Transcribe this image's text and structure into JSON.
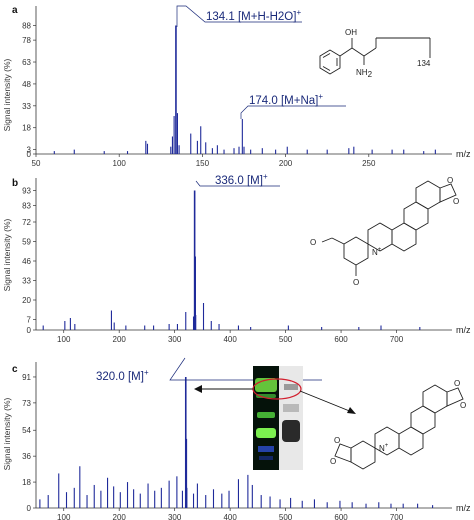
{
  "colors": {
    "spectrum": "#1f2a9a",
    "axis": "#333333",
    "annotation": "#1a2a7a",
    "ellipse": "#d2202f",
    "arrow": "#111111"
  },
  "chart_data": [
    {
      "type": "line",
      "panel": "a",
      "ylabel": "Signal intensity (%)",
      "xlabel": "m/z",
      "xlim": [
        50,
        300
      ],
      "ylim": [
        0,
        100
      ],
      "xticks": [
        "50",
        "100",
        "150",
        "200",
        "250"
      ],
      "yticks": [
        "0",
        "3",
        "18",
        "33",
        "48",
        "63",
        "78",
        "88"
      ],
      "ytick_values": [
        0,
        3,
        18,
        33,
        48,
        63,
        78,
        88
      ],
      "peaks": [
        {
          "x": 61,
          "y": 2
        },
        {
          "x": 73,
          "y": 3
        },
        {
          "x": 91,
          "y": 2
        },
        {
          "x": 105,
          "y": 2
        },
        {
          "x": 116,
          "y": 9
        },
        {
          "x": 117,
          "y": 7
        },
        {
          "x": 131,
          "y": 5
        },
        {
          "x": 132,
          "y": 12
        },
        {
          "x": 133,
          "y": 26
        },
        {
          "x": 134.1,
          "y": 88
        },
        {
          "x": 135,
          "y": 28
        },
        {
          "x": 136,
          "y": 6
        },
        {
          "x": 143,
          "y": 14
        },
        {
          "x": 147,
          "y": 9
        },
        {
          "x": 149,
          "y": 19
        },
        {
          "x": 152,
          "y": 8
        },
        {
          "x": 156,
          "y": 4
        },
        {
          "x": 159,
          "y": 6
        },
        {
          "x": 163,
          "y": 3
        },
        {
          "x": 169,
          "y": 4
        },
        {
          "x": 172,
          "y": 5
        },
        {
          "x": 174.0,
          "y": 24
        },
        {
          "x": 175,
          "y": 5
        },
        {
          "x": 179,
          "y": 3
        },
        {
          "x": 186,
          "y": 4
        },
        {
          "x": 194,
          "y": 3
        },
        {
          "x": 201,
          "y": 5
        },
        {
          "x": 213,
          "y": 3
        },
        {
          "x": 225,
          "y": 3
        },
        {
          "x": 238,
          "y": 4
        },
        {
          "x": 241,
          "y": 5
        },
        {
          "x": 252,
          "y": 3
        },
        {
          "x": 264,
          "y": 3
        },
        {
          "x": 271,
          "y": 3
        },
        {
          "x": 283,
          "y": 2
        },
        {
          "x": 290,
          "y": 3
        }
      ],
      "annotations": [
        {
          "x": 134.1,
          "text": "134.1 [M+H-H2O]",
          "sup": "+"
        },
        {
          "x": 174.0,
          "text": "174.0 [M+Na]",
          "sup": "+"
        }
      ],
      "structure_labels": [
        "OH",
        "NH",
        "2",
        "134"
      ]
    },
    {
      "type": "line",
      "panel": "b",
      "ylabel": "Signal intensity (%)",
      "xlabel": "m/z",
      "xlim": [
        50,
        800
      ],
      "ylim": [
        0,
        100
      ],
      "xticks": [
        "100",
        "200",
        "300",
        "400",
        "500",
        "600",
        "700"
      ],
      "yticks": [
        "0",
        "7",
        "20",
        "33",
        "46",
        "59",
        "72",
        "83",
        "93"
      ],
      "ytick_values": [
        0,
        7,
        20,
        33,
        46,
        59,
        72,
        83,
        93
      ],
      "peaks": [
        {
          "x": 63,
          "y": 3
        },
        {
          "x": 102,
          "y": 6
        },
        {
          "x": 112,
          "y": 8
        },
        {
          "x": 120,
          "y": 4
        },
        {
          "x": 186,
          "y": 13
        },
        {
          "x": 191,
          "y": 5
        },
        {
          "x": 212,
          "y": 3
        },
        {
          "x": 246,
          "y": 3
        },
        {
          "x": 262,
          "y": 3
        },
        {
          "x": 290,
          "y": 4
        },
        {
          "x": 305,
          "y": 4
        },
        {
          "x": 320,
          "y": 12
        },
        {
          "x": 334,
          "y": 9
        },
        {
          "x": 336.0,
          "y": 93
        },
        {
          "x": 337,
          "y": 49
        },
        {
          "x": 338,
          "y": 10
        },
        {
          "x": 352,
          "y": 18
        },
        {
          "x": 366,
          "y": 6
        },
        {
          "x": 380,
          "y": 4
        },
        {
          "x": 415,
          "y": 3
        },
        {
          "x": 437,
          "y": 2
        },
        {
          "x": 505,
          "y": 3
        },
        {
          "x": 565,
          "y": 2
        },
        {
          "x": 632,
          "y": 2
        },
        {
          "x": 672,
          "y": 3
        },
        {
          "x": 742,
          "y": 2
        }
      ],
      "annotations": [
        {
          "x": 336.0,
          "text": "336.0 [M]",
          "sup": "+"
        }
      ],
      "structure_labels": [
        "N",
        "+"
      ]
    },
    {
      "type": "line",
      "panel": "c",
      "ylabel": "Signal intensity (%)",
      "xlabel": "m/z",
      "xlim": [
        50,
        800
      ],
      "ylim": [
        0,
        100
      ],
      "xticks": [
        "100",
        "200",
        "300",
        "400",
        "500",
        "600",
        "700"
      ],
      "yticks": [
        "0",
        "18",
        "36",
        "54",
        "73",
        "91"
      ],
      "ytick_values": [
        0,
        18,
        36,
        54,
        73,
        91
      ],
      "peaks": [
        {
          "x": 57,
          "y": 6
        },
        {
          "x": 72,
          "y": 9
        },
        {
          "x": 91,
          "y": 24
        },
        {
          "x": 105,
          "y": 11
        },
        {
          "x": 119,
          "y": 14
        },
        {
          "x": 129,
          "y": 29
        },
        {
          "x": 142,
          "y": 9
        },
        {
          "x": 155,
          "y": 16
        },
        {
          "x": 167,
          "y": 12
        },
        {
          "x": 179,
          "y": 21
        },
        {
          "x": 190,
          "y": 15
        },
        {
          "x": 202,
          "y": 11
        },
        {
          "x": 215,
          "y": 18
        },
        {
          "x": 226,
          "y": 13
        },
        {
          "x": 238,
          "y": 10
        },
        {
          "x": 252,
          "y": 17
        },
        {
          "x": 264,
          "y": 12
        },
        {
          "x": 276,
          "y": 14
        },
        {
          "x": 290,
          "y": 19
        },
        {
          "x": 304,
          "y": 22
        },
        {
          "x": 314,
          "y": 12
        },
        {
          "x": 320.0,
          "y": 91
        },
        {
          "x": 321,
          "y": 48
        },
        {
          "x": 322,
          "y": 14
        },
        {
          "x": 334,
          "y": 10
        },
        {
          "x": 341,
          "y": 17
        },
        {
          "x": 356,
          "y": 9
        },
        {
          "x": 370,
          "y": 13
        },
        {
          "x": 385,
          "y": 10
        },
        {
          "x": 398,
          "y": 12
        },
        {
          "x": 415,
          "y": 20
        },
        {
          "x": 432,
          "y": 23
        },
        {
          "x": 440,
          "y": 16
        },
        {
          "x": 456,
          "y": 9
        },
        {
          "x": 472,
          "y": 8
        },
        {
          "x": 490,
          "y": 6
        },
        {
          "x": 509,
          "y": 7
        },
        {
          "x": 530,
          "y": 5
        },
        {
          "x": 552,
          "y": 6
        },
        {
          "x": 575,
          "y": 4
        },
        {
          "x": 598,
          "y": 5
        },
        {
          "x": 620,
          "y": 4
        },
        {
          "x": 645,
          "y": 3
        },
        {
          "x": 668,
          "y": 4
        },
        {
          "x": 690,
          "y": 3
        },
        {
          "x": 712,
          "y": 3
        },
        {
          "x": 738,
          "y": 3
        },
        {
          "x": 765,
          "y": 2
        }
      ],
      "annotations": [
        {
          "x": 320.0,
          "text": "320.0 [M]",
          "sup": "+"
        }
      ],
      "structure_labels": [
        "N",
        "+"
      ]
    }
  ]
}
